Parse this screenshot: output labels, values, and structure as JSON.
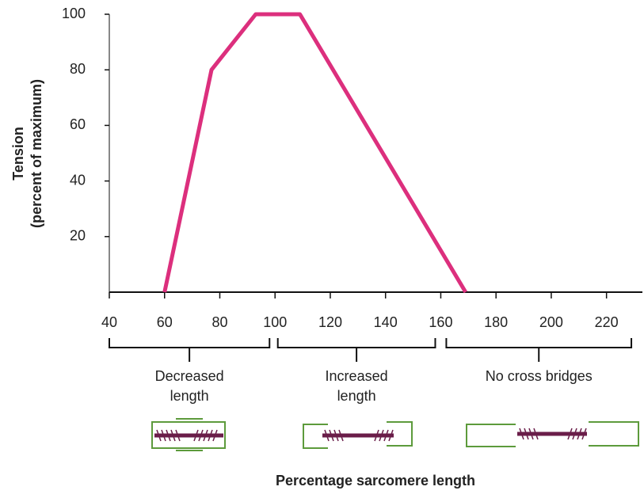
{
  "chart_data": {
    "type": "line",
    "y_label": [
      "Tension",
      "(percent of maximum)"
    ],
    "x_label": "Percentage sarcomere length",
    "x": [
      60,
      77,
      93,
      109,
      169
    ],
    "series": [
      {
        "values": [
          0,
          80,
          100,
          100,
          0
        ],
        "color": "#dc2f7d"
      }
    ],
    "xlim": [
      40,
      233
    ],
    "ylim": [
      0,
      100
    ],
    "xticks": [
      40,
      60,
      80,
      100,
      120,
      140,
      160,
      180,
      200,
      220
    ],
    "yticks": [
      20,
      40,
      60,
      80,
      100
    ],
    "brackets": [
      {
        "label": [
          "Decreased",
          "length"
        ],
        "from": 40,
        "to": 98
      },
      {
        "label": [
          "Increased",
          "length"
        ],
        "from": 101,
        "to": 158
      },
      {
        "label": [
          "No cross bridges"
        ],
        "from": 162,
        "to": 229
      }
    ]
  }
}
